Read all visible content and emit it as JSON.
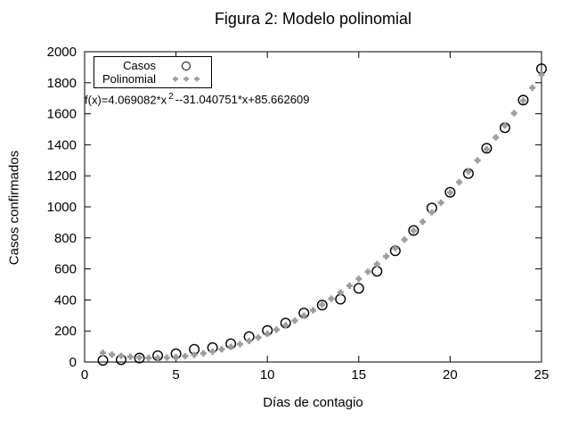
{
  "figure": {
    "title": "Figura 2: Modelo polinomial",
    "xlabel": "Días de contagio",
    "ylabel": "Casos confirmados"
  },
  "legend": {
    "items": [
      {
        "label": "Casos",
        "marker": "open-circle-icon"
      },
      {
        "label": "Polinomial",
        "marker": "gray-dots-icon"
      }
    ]
  },
  "equation": {
    "prefix": "f(x)=4.069082*x",
    "exponent": "2",
    "suffix": "--31.040751*x+85.662609"
  },
  "colors": {
    "casos": "#000000",
    "polinomial": "#9c9c9c",
    "axis": "#000000",
    "background": "#ffffff"
  },
  "chart_data": {
    "type": "scatter",
    "title": "Figura 2: Modelo polinomial",
    "xlabel": "Días de contagio",
    "ylabel": "Casos confirmados",
    "xlim": [
      0,
      25
    ],
    "ylim": [
      0,
      2000
    ],
    "xticks": [
      0,
      5,
      10,
      15,
      20,
      25
    ],
    "yticks": [
      0,
      200,
      400,
      600,
      800,
      1000,
      1200,
      1400,
      1600,
      1800,
      2000
    ],
    "grid": false,
    "legend_position": "top-left",
    "series": [
      {
        "name": "Casos",
        "type": "scatter",
        "marker": "open-circle",
        "color": "#000000",
        "x": [
          1,
          2,
          3,
          4,
          5,
          6,
          7,
          8,
          9,
          10,
          11,
          12,
          13,
          14,
          15,
          16,
          17,
          18,
          19,
          20,
          21,
          22,
          23,
          24,
          25
        ],
        "y": [
          11,
          15,
          26,
          41,
          53,
          82,
          93,
          118,
          164,
          203,
          251,
          316,
          367,
          405,
          475,
          585,
          717,
          848,
          993,
          1094,
          1215,
          1378,
          1510,
          1688,
          1890
        ]
      },
      {
        "name": "Polinomial",
        "type": "scatter",
        "marker": "gray-dot",
        "color": "#9c9c9c",
        "fit": {
          "form": "a*x^2+b*x+c",
          "a": 4.069082,
          "b": -31.040751,
          "c": 85.662609
        },
        "x_start": 1,
        "x_end": 25,
        "x_step": 0.5
      }
    ]
  }
}
